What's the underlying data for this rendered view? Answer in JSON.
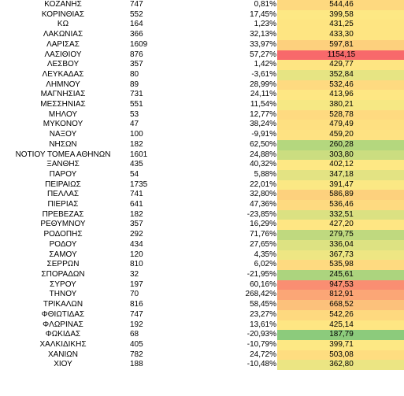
{
  "rows": [
    {
      "name": "ΚΟΖΑΝΗΣ",
      "count": "747",
      "pct": "0,81%",
      "value": "544,46",
      "color": "#fed97f"
    },
    {
      "name": "ΚΟΡΙΝΘΙΑΣ",
      "count": "552",
      "pct": "17,45%",
      "value": "399,58",
      "color": "#fde884"
    },
    {
      "name": "ΚΩ",
      "count": "164",
      "pct": "1,23%",
      "value": "431,25",
      "color": "#fee582"
    },
    {
      "name": "ΛΑΚΩΝΙΑΣ",
      "count": "366",
      "pct": "32,13%",
      "value": "433,30",
      "color": "#fee582"
    },
    {
      "name": "ΛΑΡΙΣΑΣ",
      "count": "1609",
      "pct": "33,97%",
      "value": "597,81",
      "color": "#fdd07d"
    },
    {
      "name": "ΛΑΣΙΘΙΟΥ",
      "count": "876",
      "pct": "57,27%",
      "value": "1154,15",
      "color": "#f8696b"
    },
    {
      "name": "ΛΕΣΒΟΥ",
      "count": "357",
      "pct": "1,42%",
      "value": "429,77",
      "color": "#fee582"
    },
    {
      "name": "ΛΕΥΚΑΔΑΣ",
      "count": "80",
      "pct": "-3,61%",
      "value": "352,84",
      "color": "#e6e483"
    },
    {
      "name": "ΛΗΜΝΟΥ",
      "count": "89",
      "pct": "28,99%",
      "value": "532,46",
      "color": "#feda80"
    },
    {
      "name": "ΜΑΓΝΗΣΙΑΣ",
      "count": "731",
      "pct": "24,11%",
      "value": "413,96",
      "color": "#fee783"
    },
    {
      "name": "ΜΕΣΣΗΝΙΑΣ",
      "count": "551",
      "pct": "11,54%",
      "value": "380,21",
      "color": "#f6e884"
    },
    {
      "name": "ΜΗΛΟΥ",
      "count": "53",
      "pct": "12,77%",
      "value": "528,78",
      "color": "#feda80"
    },
    {
      "name": "ΜΥΚΟΝΟΥ",
      "count": "47",
      "pct": "38,24%",
      "value": "479,49",
      "color": "#fee081"
    },
    {
      "name": "ΝΑΞΟΥ",
      "count": "100",
      "pct": "-9,91%",
      "value": "459,20",
      "color": "#fee282"
    },
    {
      "name": "ΝΗΣΩΝ",
      "count": "182",
      "pct": "62,50%",
      "value": "260,28",
      "color": "#b4d77e"
    },
    {
      "name": "ΝΟΤΙΟΥ ΤΟΜΕΑ ΑΘΗΝΩΝ",
      "count": "1601",
      "pct": "24,88%",
      "value": "303,80",
      "color": "#cbdd80"
    },
    {
      "name": "ΞΑΝΘΗΣ",
      "count": "435",
      "pct": "40,32%",
      "value": "402,12",
      "color": "#fee884"
    },
    {
      "name": "ΠΑΡΟΥ",
      "count": "54",
      "pct": "5,88%",
      "value": "347,18",
      "color": "#e3e383"
    },
    {
      "name": "ΠΕΙΡΑΙΩΣ",
      "count": "1735",
      "pct": "22,01%",
      "value": "391,47",
      "color": "#fbe884"
    },
    {
      "name": "ΠΕΛΛΑΣ",
      "count": "741",
      "pct": "32,80%",
      "value": "586,89",
      "color": "#fdd17d"
    },
    {
      "name": "ΠΙΕΡΙΑΣ",
      "count": "641",
      "pct": "47,36%",
      "value": "536,46",
      "color": "#feda80"
    },
    {
      "name": "ΠΡΕΒΕΖΑΣ",
      "count": "182",
      "pct": "-23,85%",
      "value": "332,51",
      "color": "#dbe182"
    },
    {
      "name": "ΡΕΘΥΜΝΟΥ",
      "count": "357",
      "pct": "16,29%",
      "value": "427,20",
      "color": "#fee683"
    },
    {
      "name": "ΡΟΔΟΠΗΣ",
      "count": "292",
      "pct": "71,76%",
      "value": "279,75",
      "color": "#bfd97f"
    },
    {
      "name": "ΡΟΔΟΥ",
      "count": "434",
      "pct": "27,65%",
      "value": "336,04",
      "color": "#dde282"
    },
    {
      "name": "ΣΑΜΟΥ",
      "count": "120",
      "pct": "4,35%",
      "value": "367,73",
      "color": "#eee683"
    },
    {
      "name": "ΣΕΡΡΩΝ",
      "count": "810",
      "pct": "6,02%",
      "value": "535,98",
      "color": "#feda80"
    },
    {
      "name": "ΣΠΟΡΑΔΩΝ",
      "count": "32",
      "pct": "-21,95%",
      "value": "245,61",
      "color": "#acd47e"
    },
    {
      "name": "ΣΥΡΟΥ",
      "count": "197",
      "pct": "60,16%",
      "value": "947,53",
      "color": "#fa8e72"
    },
    {
      "name": "ΤΗΝΟΥ",
      "count": "70",
      "pct": "268,42%",
      "value": "812,91",
      "color": "#fba676"
    },
    {
      "name": "ΤΡΙΚΑΛΩΝ",
      "count": "816",
      "pct": "58,45%",
      "value": "668,52",
      "color": "#fcc17b"
    },
    {
      "name": "ΦΘΙΩΤΙΔΑΣ",
      "count": "747",
      "pct": "23,27%",
      "value": "542,26",
      "color": "#fed97f"
    },
    {
      "name": "ΦΛΩΡΙΝΑΣ",
      "count": "192",
      "pct": "13,61%",
      "value": "425,14",
      "color": "#fee683"
    },
    {
      "name": "ΦΩΚΙΔΑΣ",
      "count": "68",
      "pct": "-20,93%",
      "value": "187,79",
      "color": "#8ccb7c"
    },
    {
      "name": "ΧΑΛΚΙΔΙΚΗΣ",
      "count": "405",
      "pct": "-10,79%",
      "value": "399,71",
      "color": "#fde884"
    },
    {
      "name": "ΧΑΝΙΩΝ",
      "count": "782",
      "pct": "24,72%",
      "value": "503,08",
      "color": "#fedd80"
    },
    {
      "name": "ΧΙΟΥ",
      "count": "188",
      "pct": "-10,48%",
      "value": "362,80",
      "color": "#ebe583"
    }
  ]
}
